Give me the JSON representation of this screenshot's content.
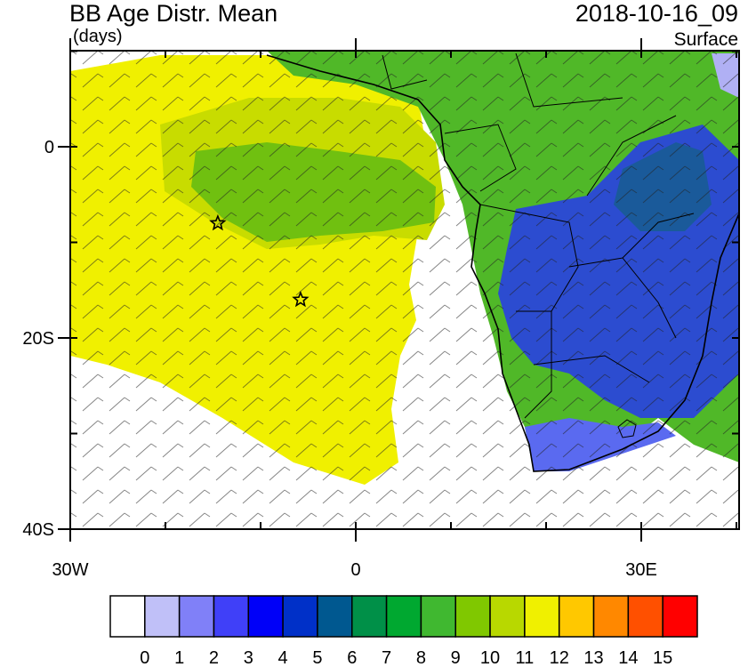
{
  "header": {
    "title": "BB Age Distr. Mean",
    "units": "(days)",
    "datetime": "2018-10-16_09",
    "level": "Surface"
  },
  "axes": {
    "y_ticks": [
      {
        "value": 0,
        "label": "0"
      },
      {
        "value": -20,
        "label": "20S"
      },
      {
        "value": -40,
        "label": "40S"
      }
    ],
    "x_ticks": [
      {
        "value": -30,
        "label": "30W"
      },
      {
        "value": 0,
        "label": "0"
      },
      {
        "value": 30,
        "label": "30E"
      }
    ],
    "lon_range": [
      -30,
      40
    ],
    "lat_range": [
      -40,
      10
    ]
  },
  "colorbar": {
    "labels": [
      "0",
      "1",
      "2",
      "3",
      "4",
      "5",
      "6",
      "7",
      "8",
      "9",
      "10",
      "11",
      "12",
      "13",
      "14",
      "15"
    ],
    "colors": [
      "#ffffff",
      "#c0c0f8",
      "#8080f8",
      "#4040f8",
      "#0000f8",
      "#0030c8",
      "#005890",
      "#009048",
      "#00a830",
      "#40b830",
      "#80c800",
      "#b8d800",
      "#f0f000",
      "#ffc800",
      "#ff8800",
      "#ff5000",
      "#ff0000"
    ]
  },
  "markers": [
    {
      "name": "star-west",
      "lon": -14.5,
      "lat": -8
    },
    {
      "name": "star-east",
      "lon": -5.8,
      "lat": -16
    }
  ]
}
